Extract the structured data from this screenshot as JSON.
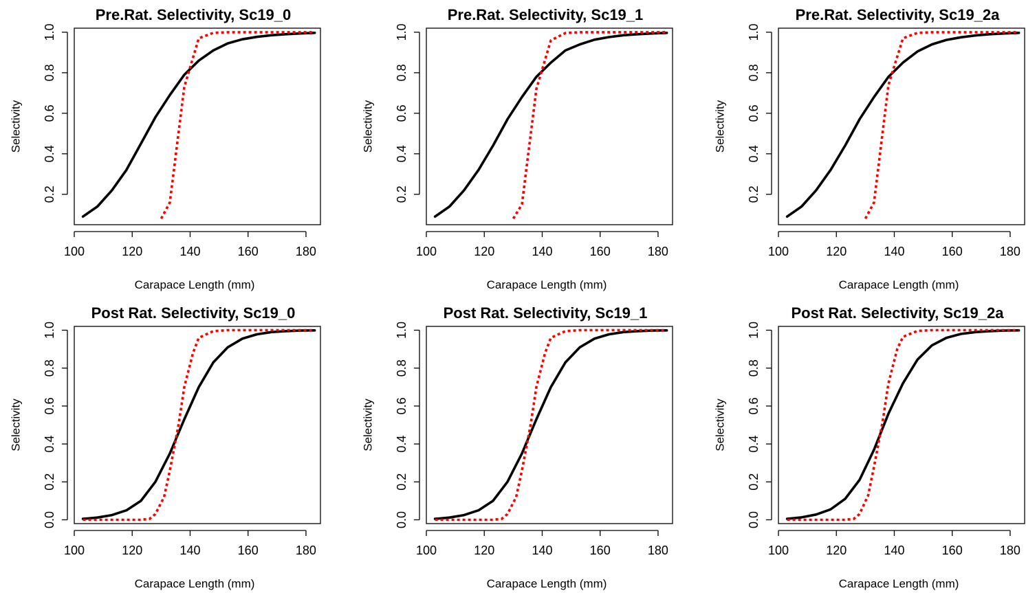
{
  "chart_data": [
    {
      "type": "line",
      "title": "Pre.Rat. Selectivity, Sc19_0",
      "xlabel": "Carapace Length (mm)",
      "ylabel": "Selectivity",
      "xlim": [
        100,
        185
      ],
      "ylim": [
        0.05,
        1.02
      ],
      "xticks": [
        100,
        120,
        140,
        160,
        180
      ],
      "xtick_labels": [
        "100",
        "120",
        "140",
        "160",
        "180"
      ],
      "yticks": [
        0.2,
        0.4,
        0.6,
        0.8,
        1.0
      ],
      "ytick_labels": [
        "0.2",
        "0.4",
        "0.6",
        "0.8",
        "1.0"
      ],
      "grid": false,
      "series": [
        {
          "color": "#000000",
          "style": "solid",
          "x": [
            103,
            108,
            113,
            118,
            123,
            128,
            133,
            138,
            143,
            148,
            153,
            158,
            163,
            168,
            173,
            178,
            183
          ],
          "y": [
            0.09,
            0.14,
            0.22,
            0.32,
            0.45,
            0.58,
            0.69,
            0.79,
            0.86,
            0.91,
            0.945,
            0.965,
            0.977,
            0.985,
            0.99,
            0.994,
            0.997
          ]
        },
        {
          "color": "#ff0000",
          "style": "dotted",
          "x": [
            130,
            133,
            138,
            143,
            148,
            153,
            158,
            163,
            168,
            173,
            178,
            183
          ],
          "y": [
            0.08,
            0.16,
            0.73,
            0.97,
            0.997,
            1.0,
            1.0,
            1.0,
            1.0,
            1.0,
            1.0,
            1.0
          ]
        }
      ]
    },
    {
      "type": "line",
      "title": "Pre.Rat. Selectivity, Sc19_1",
      "xlabel": "Carapace Length (mm)",
      "ylabel": "Selectivity",
      "xlim": [
        100,
        185
      ],
      "ylim": [
        0.05,
        1.02
      ],
      "xticks": [
        100,
        120,
        140,
        160,
        180
      ],
      "xtick_labels": [
        "100",
        "120",
        "140",
        "160",
        "180"
      ],
      "yticks": [
        0.2,
        0.4,
        0.6,
        0.8,
        1.0
      ],
      "ytick_labels": [
        "0.2",
        "0.4",
        "0.6",
        "0.8",
        "1.0"
      ],
      "grid": false,
      "series": [
        {
          "color": "#000000",
          "style": "solid",
          "x": [
            103,
            108,
            113,
            118,
            123,
            128,
            133,
            138,
            143,
            148,
            153,
            158,
            163,
            168,
            173,
            178,
            183
          ],
          "y": [
            0.09,
            0.14,
            0.22,
            0.32,
            0.44,
            0.57,
            0.68,
            0.78,
            0.85,
            0.91,
            0.94,
            0.963,
            0.976,
            0.985,
            0.99,
            0.994,
            0.997
          ]
        },
        {
          "color": "#ff0000",
          "style": "dotted",
          "x": [
            130,
            133,
            138,
            143,
            148,
            153,
            158,
            163,
            168,
            173,
            178,
            183
          ],
          "y": [
            0.08,
            0.15,
            0.72,
            0.96,
            0.996,
            1.0,
            1.0,
            1.0,
            1.0,
            1.0,
            1.0,
            1.0
          ]
        }
      ]
    },
    {
      "type": "line",
      "title": "Pre.Rat. Selectivity, Sc19_2a",
      "xlabel": "Carapace Length (mm)",
      "ylabel": "Selectivity",
      "xlim": [
        100,
        185
      ],
      "ylim": [
        0.05,
        1.02
      ],
      "xticks": [
        100,
        120,
        140,
        160,
        180
      ],
      "xtick_labels": [
        "100",
        "120",
        "140",
        "160",
        "180"
      ],
      "yticks": [
        0.2,
        0.4,
        0.6,
        0.8,
        1.0
      ],
      "ytick_labels": [
        "0.2",
        "0.4",
        "0.6",
        "0.8",
        "1.0"
      ],
      "grid": false,
      "series": [
        {
          "color": "#000000",
          "style": "solid",
          "x": [
            103,
            108,
            113,
            118,
            123,
            128,
            133,
            138,
            143,
            148,
            153,
            158,
            163,
            168,
            173,
            178,
            183
          ],
          "y": [
            0.09,
            0.14,
            0.22,
            0.32,
            0.44,
            0.57,
            0.68,
            0.78,
            0.85,
            0.905,
            0.94,
            0.962,
            0.975,
            0.984,
            0.99,
            0.994,
            0.997
          ]
        },
        {
          "color": "#ff0000",
          "style": "dotted",
          "x": [
            130,
            133,
            138,
            143,
            148,
            153,
            158,
            163,
            168,
            173,
            178,
            183
          ],
          "y": [
            0.08,
            0.16,
            0.74,
            0.97,
            0.997,
            1.0,
            1.0,
            1.0,
            1.0,
            1.0,
            1.0,
            1.0
          ]
        }
      ]
    },
    {
      "type": "line",
      "title": "Post Rat. Selectivity, Sc19_0",
      "xlabel": "Carapace Length (mm)",
      "ylabel": "Selectivity",
      "xlim": [
        100,
        185
      ],
      "ylim": [
        -0.02,
        1.02
      ],
      "xticks": [
        100,
        120,
        140,
        160,
        180
      ],
      "xtick_labels": [
        "100",
        "120",
        "140",
        "160",
        "180"
      ],
      "yticks": [
        0.0,
        0.2,
        0.4,
        0.6,
        0.8,
        1.0
      ],
      "ytick_labels": [
        "0.0",
        "0.2",
        "0.4",
        "0.6",
        "0.8",
        "1.0"
      ],
      "grid": false,
      "series": [
        {
          "color": "#000000",
          "style": "solid",
          "x": [
            103,
            108,
            113,
            118,
            123,
            128,
            133,
            138,
            143,
            148,
            153,
            158,
            163,
            168,
            173,
            178,
            183
          ],
          "y": [
            0.005,
            0.012,
            0.025,
            0.05,
            0.1,
            0.2,
            0.35,
            0.53,
            0.7,
            0.83,
            0.91,
            0.955,
            0.978,
            0.99,
            0.995,
            0.998,
            0.999
          ]
        },
        {
          "color": "#ff0000",
          "style": "dotted",
          "x": [
            103,
            108,
            113,
            118,
            123,
            126,
            128,
            131,
            133,
            136,
            138,
            141,
            143,
            148,
            153,
            158,
            163,
            168,
            173,
            178,
            183
          ],
          "y": [
            0.0,
            0.0,
            0.0,
            0.0,
            0.0,
            0.005,
            0.03,
            0.12,
            0.26,
            0.5,
            0.7,
            0.88,
            0.96,
            0.995,
            1.0,
            1.0,
            1.0,
            1.0,
            1.0,
            1.0,
            1.0
          ]
        }
      ]
    },
    {
      "type": "line",
      "title": "Post Rat. Selectivity, Sc19_1",
      "xlabel": "Carapace Length (mm)",
      "ylabel": "Selectivity",
      "xlim": [
        100,
        185
      ],
      "ylim": [
        -0.02,
        1.02
      ],
      "xticks": [
        100,
        120,
        140,
        160,
        180
      ],
      "xtick_labels": [
        "100",
        "120",
        "140",
        "160",
        "180"
      ],
      "yticks": [
        0.0,
        0.2,
        0.4,
        0.6,
        0.8,
        1.0
      ],
      "ytick_labels": [
        "0.0",
        "0.2",
        "0.4",
        "0.6",
        "0.8",
        "1.0"
      ],
      "grid": false,
      "series": [
        {
          "color": "#000000",
          "style": "solid",
          "x": [
            103,
            108,
            113,
            118,
            123,
            128,
            133,
            138,
            143,
            148,
            153,
            158,
            163,
            168,
            173,
            178,
            183
          ],
          "y": [
            0.005,
            0.012,
            0.025,
            0.05,
            0.1,
            0.2,
            0.35,
            0.53,
            0.7,
            0.83,
            0.91,
            0.955,
            0.978,
            0.99,
            0.995,
            0.998,
            0.999
          ]
        },
        {
          "color": "#ff0000",
          "style": "dotted",
          "x": [
            103,
            108,
            113,
            118,
            123,
            126,
            128,
            131,
            133,
            136,
            138,
            141,
            143,
            148,
            153,
            158,
            163,
            168,
            173,
            178,
            183
          ],
          "y": [
            0.0,
            0.0,
            0.0,
            0.0,
            0.0,
            0.005,
            0.03,
            0.12,
            0.26,
            0.5,
            0.7,
            0.88,
            0.96,
            0.995,
            1.0,
            1.0,
            1.0,
            1.0,
            1.0,
            1.0,
            1.0
          ]
        }
      ]
    },
    {
      "type": "line",
      "title": "Post Rat. Selectivity, Sc19_2a",
      "xlabel": "Carapace Length (mm)",
      "ylabel": "Selectivity",
      "xlim": [
        100,
        185
      ],
      "ylim": [
        -0.02,
        1.02
      ],
      "xticks": [
        100,
        120,
        140,
        160,
        180
      ],
      "xtick_labels": [
        "100",
        "120",
        "140",
        "160",
        "180"
      ],
      "yticks": [
        0.0,
        0.2,
        0.4,
        0.6,
        0.8,
        1.0
      ],
      "ytick_labels": [
        "0.0",
        "0.2",
        "0.4",
        "0.6",
        "0.8",
        "1.0"
      ],
      "grid": false,
      "series": [
        {
          "color": "#000000",
          "style": "solid",
          "x": [
            103,
            108,
            113,
            118,
            123,
            128,
            133,
            138,
            143,
            148,
            153,
            158,
            163,
            168,
            173,
            178,
            183
          ],
          "y": [
            0.005,
            0.013,
            0.028,
            0.055,
            0.11,
            0.21,
            0.37,
            0.56,
            0.72,
            0.845,
            0.92,
            0.96,
            0.98,
            0.99,
            0.995,
            0.998,
            0.999
          ]
        },
        {
          "color": "#ff0000",
          "style": "dotted",
          "x": [
            103,
            108,
            113,
            118,
            123,
            126,
            128,
            131,
            133,
            136,
            138,
            141,
            143,
            148,
            153,
            158,
            163,
            168,
            173,
            178,
            183
          ],
          "y": [
            0.0,
            0.0,
            0.0,
            0.0,
            0.0,
            0.005,
            0.03,
            0.13,
            0.28,
            0.52,
            0.72,
            0.9,
            0.965,
            0.996,
            1.0,
            1.0,
            1.0,
            1.0,
            1.0,
            1.0,
            1.0
          ]
        }
      ]
    }
  ]
}
